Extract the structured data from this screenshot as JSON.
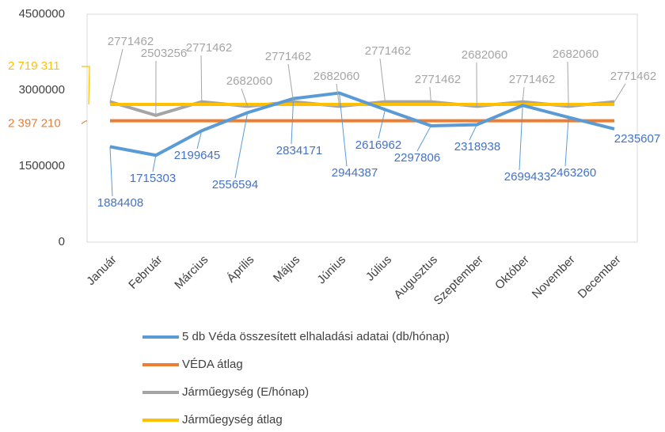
{
  "chart_data": {
    "type": "line",
    "categories": [
      "Január",
      "Február",
      "Március",
      "Április",
      "Május",
      "Június",
      "Július",
      "Augusztus",
      "Szeptember",
      "Október",
      "November",
      "December"
    ],
    "series": [
      {
        "name": "5 db Véda összesített elhaladási adatai (db/hónap)",
        "color": "#5b9bd5",
        "values": [
          1884408,
          1715303,
          2199645,
          2556594,
          2834171,
          2944387,
          2616962,
          2297806,
          2318938,
          2699433,
          2463260,
          2235607
        ]
      },
      {
        "name": "VÉDA átlag",
        "color": "#ed7d31",
        "values": [
          2397210,
          2397210,
          2397210,
          2397210,
          2397210,
          2397210,
          2397210,
          2397210,
          2397210,
          2397210,
          2397210,
          2397210
        ]
      },
      {
        "name": "Járműegység (E/hónap)",
        "color": "#a5a5a5",
        "values": [
          2771462,
          2503256,
          2771462,
          2682060,
          2771462,
          2682060,
          2771462,
          2771462,
          2682060,
          2771462,
          2682060,
          2771462
        ]
      },
      {
        "name": "Járműegység átlag",
        "color": "#ffc000",
        "values": [
          2719311,
          2719311,
          2719311,
          2719311,
          2719311,
          2719311,
          2719311,
          2719311,
          2719311,
          2719311,
          2719311,
          2719311
        ]
      }
    ],
    "annotations": [
      {
        "text": "2 719 311",
        "y": 2719311,
        "color": "#ffc000"
      },
      {
        "text": "2 397 210",
        "y": 2397210,
        "color": "#ed7d31"
      }
    ],
    "ylim": [
      0,
      4500000
    ],
    "yticks": [
      0,
      1500000,
      3000000,
      4500000
    ],
    "grid": false,
    "legend": "bottom"
  }
}
